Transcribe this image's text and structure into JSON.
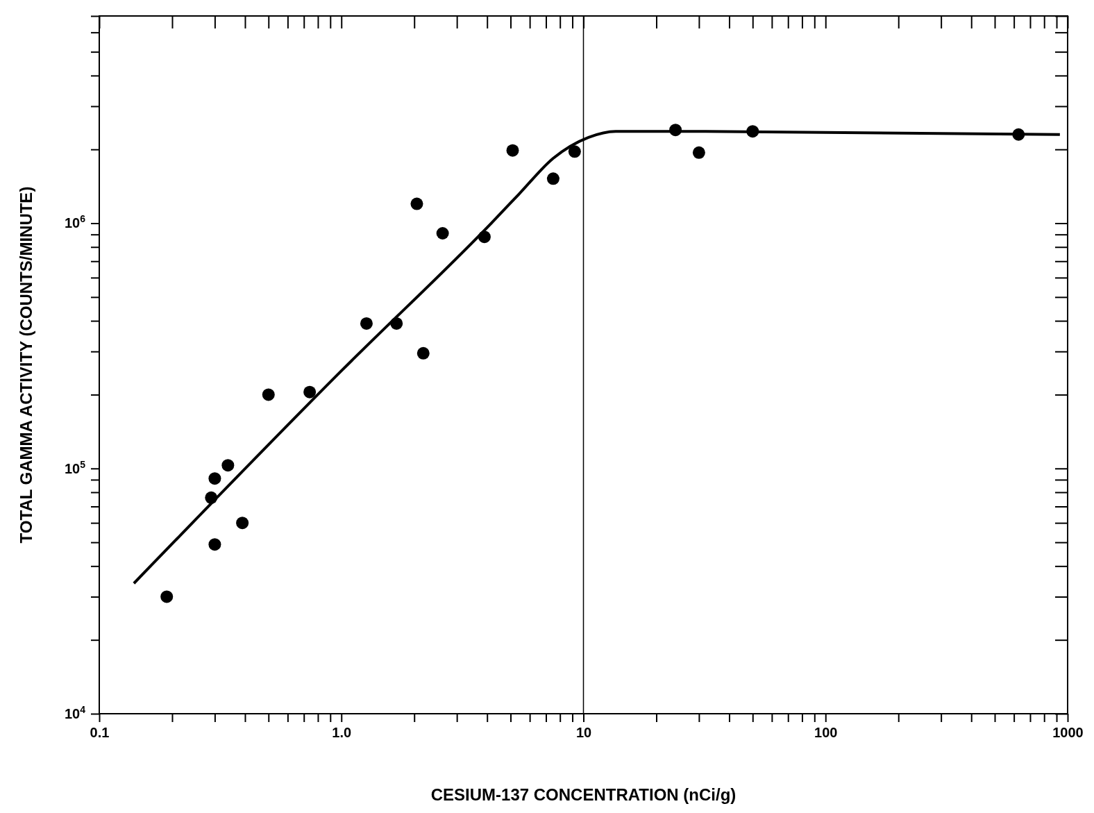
{
  "chart_data": {
    "type": "scatter",
    "xlabel": "CESIUM-137 CONCENTRATION (nCi/g)",
    "ylabel": "TOTAL GAMMA ACTIVITY (COUNTS/MINUTE)",
    "log": "xy",
    "xlim": [
      0.1,
      1000
    ],
    "ylim": [
      10000,
      7000000
    ],
    "xticks": [
      {
        "value": 0.1,
        "label": "0.1"
      },
      {
        "value": 0.2,
        "label": null
      },
      {
        "value": 0.3,
        "label": null
      },
      {
        "value": 0.4,
        "label": null
      },
      {
        "value": 0.5,
        "label": null
      },
      {
        "value": 0.6,
        "label": null
      },
      {
        "value": 0.7,
        "label": null
      },
      {
        "value": 0.8,
        "label": null
      },
      {
        "value": 0.9,
        "label": null
      },
      {
        "value": 1,
        "label": "1.0"
      },
      {
        "value": 2,
        "label": null
      },
      {
        "value": 3,
        "label": null
      },
      {
        "value": 4,
        "label": null
      },
      {
        "value": 5,
        "label": null
      },
      {
        "value": 6,
        "label": null
      },
      {
        "value": 7,
        "label": null
      },
      {
        "value": 8,
        "label": null
      },
      {
        "value": 9,
        "label": null
      },
      {
        "value": 10,
        "label": "10"
      },
      {
        "value": 20,
        "label": null
      },
      {
        "value": 30,
        "label": null
      },
      {
        "value": 40,
        "label": null
      },
      {
        "value": 50,
        "label": null
      },
      {
        "value": 60,
        "label": null
      },
      {
        "value": 70,
        "label": null
      },
      {
        "value": 80,
        "label": null
      },
      {
        "value": 90,
        "label": null
      },
      {
        "value": 100,
        "label": "100"
      },
      {
        "value": 200,
        "label": null
      },
      {
        "value": 300,
        "label": null
      },
      {
        "value": 400,
        "label": null
      },
      {
        "value": 500,
        "label": null
      },
      {
        "value": 600,
        "label": null
      },
      {
        "value": 700,
        "label": null
      },
      {
        "value": 800,
        "label": null
      },
      {
        "value": 900,
        "label": null
      },
      {
        "value": 1000,
        "label": "1000"
      }
    ],
    "yticks": [
      {
        "value": 10000,
        "label": "10$^{4}$"
      },
      {
        "value": 20000,
        "label": null
      },
      {
        "value": 30000,
        "label": null
      },
      {
        "value": 40000,
        "label": null
      },
      {
        "value": 50000,
        "label": null
      },
      {
        "value": 60000,
        "label": null
      },
      {
        "value": 70000,
        "label": null
      },
      {
        "value": 80000,
        "label": null
      },
      {
        "value": 90000,
        "label": null
      },
      {
        "value": 100000,
        "label": "10$^{5}$"
      },
      {
        "value": 200000,
        "label": null
      },
      {
        "value": 300000,
        "label": null
      },
      {
        "value": 400000,
        "label": null
      },
      {
        "value": 500000,
        "label": null
      },
      {
        "value": 600000,
        "label": null
      },
      {
        "value": 700000,
        "label": null
      },
      {
        "value": 800000,
        "label": null
      },
      {
        "value": 900000,
        "label": null
      },
      {
        "value": 1000000,
        "label": "10$^{6}$"
      },
      {
        "value": 2000000,
        "label": null
      },
      {
        "value": 3000000,
        "label": null
      },
      {
        "value": 4000000,
        "label": null
      },
      {
        "value": 5000000,
        "label": null
      },
      {
        "value": 6000000,
        "label": null
      },
      {
        "value": 7000000,
        "label": null
      }
    ],
    "grid": false,
    "marker": "circle",
    "ref_lines": [
      {
        "axis": "x",
        "value": 10,
        "color": "#000000",
        "line_style": "solid"
      }
    ],
    "series": [
      {
        "type": "scatter",
        "color": "#000000",
        "x": [
          0.19,
          0.29,
          0.3,
          0.3,
          0.34,
          0.39,
          0.5,
          0.74,
          1.27,
          1.69,
          2.18,
          2.05,
          2.62,
          3.9,
          5.1,
          7.5,
          9.2,
          24,
          30,
          50,
          627
        ],
        "values": [
          30000,
          76000,
          91000,
          49000,
          103000,
          60000,
          200000,
          205000,
          390000,
          390000,
          295000,
          1200000,
          910000,
          880000,
          1980000,
          1520000,
          1960000,
          2400000,
          1940000,
          2370000,
          2300000
        ]
      },
      {
        "type": "line",
        "color": "#000000",
        "marker": "none",
        "x": [
          0.139,
          1,
          4.16,
          5.4,
          7.5,
          10.5,
          13.6,
          30,
          929
        ],
        "values": [
          34000,
          250000,
          1000000,
          1310000,
          1840000,
          2240000,
          2370000,
          2370000,
          2300000
        ]
      }
    ]
  }
}
